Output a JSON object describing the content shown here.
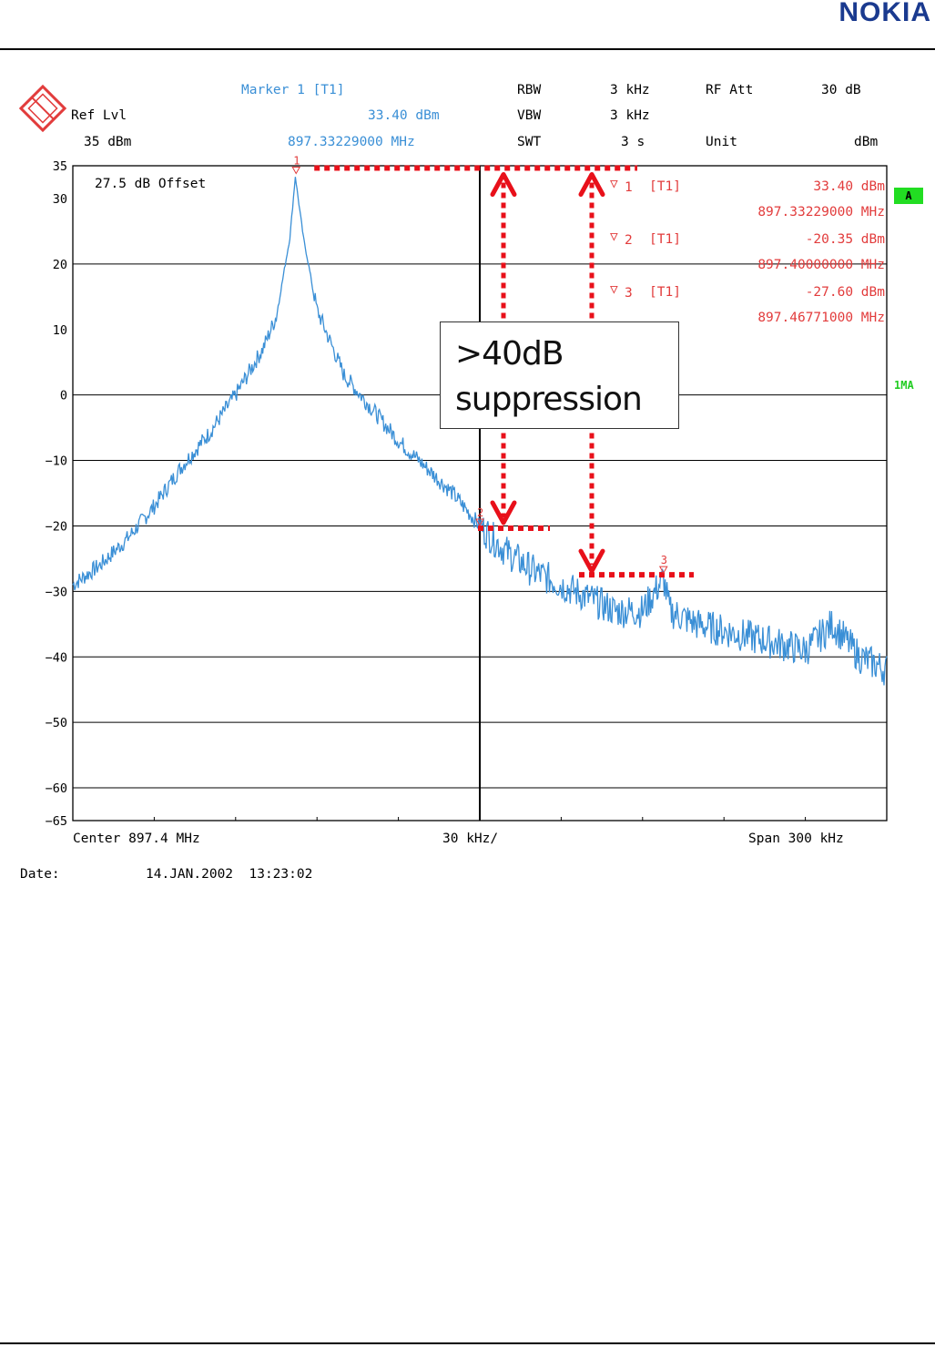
{
  "logo": {
    "text": "NOKIA",
    "color": "#1a3a8f"
  },
  "header": {
    "ref_lvl_label": "Ref Lvl",
    "ref_lvl_value": "35 dBm",
    "marker_title": "Marker 1 [T1]",
    "marker_level": "33.40 dBm",
    "marker_freq": "897.33229000 MHz",
    "rbw_label": "RBW",
    "rbw_value": "3 kHz",
    "vbw_label": "VBW",
    "vbw_value": "3 kHz",
    "swt_label": "SWT",
    "swt_value": "3 s",
    "rf_att_label": "RF Att",
    "rf_att_value": "30 dB",
    "unit_label": "Unit",
    "unit_value": "dBm"
  },
  "offset_label": "27.5 dB Offset",
  "markers_table": [
    {
      "id": "1",
      "tag": "[T1]",
      "level": "33.40 dBm",
      "freq": "897.33229000 MHz"
    },
    {
      "id": "2",
      "tag": "[T1]",
      "level": "-20.35 dBm",
      "freq": "897.40000000 MHz"
    },
    {
      "id": "3",
      "tag": "[T1]",
      "level": "-27.60 dBm",
      "freq": "897.46771000 MHz"
    }
  ],
  "side_badges": {
    "a": "A",
    "trace": "1MA"
  },
  "footer": {
    "center": "Center 897.4 MHz",
    "div": "30 kHz/",
    "span": "Span 300 kHz",
    "date_label": "Date:",
    "date_value": "14.JAN.2002  13:23:02"
  },
  "callout_text": ">40dB\nsuppression",
  "colors": {
    "trace": "#3a8fd6",
    "marker": "#e23c3c",
    "annotation": "#e8101a",
    "grid": "#000000",
    "badge": "#22dd22"
  },
  "chart_data": {
    "type": "line",
    "title": "",
    "xlabel": "",
    "ylabel": "",
    "x_unit": "MHz",
    "y_unit": "dBm",
    "xlim": [
      897.25,
      897.55
    ],
    "ylim": [
      -65,
      35
    ],
    "y_ticks": [
      35,
      30,
      20,
      10,
      0,
      -10,
      -20,
      -30,
      -40,
      -50,
      -60,
      -65
    ],
    "grid": true,
    "series": [
      {
        "x": [
          897.25,
          897.26,
          897.27,
          897.28,
          897.29,
          897.3,
          897.31,
          897.32,
          897.325,
          897.33,
          897.332,
          897.335,
          897.34,
          897.345,
          897.35,
          897.36,
          897.37,
          897.38,
          897.39,
          897.4,
          897.41,
          897.42,
          897.43,
          897.44,
          897.45,
          897.46,
          897.4677,
          897.47,
          897.48,
          897.49,
          897.5,
          897.51,
          897.52,
          897.53,
          897.54,
          897.55
        ],
        "y": [
          -29,
          -26,
          -22,
          -17,
          -11,
          -6,
          0,
          7,
          12,
          24,
          33.4,
          24,
          13,
          8,
          3,
          -2,
          -7,
          -11,
          -15,
          -20,
          -24,
          -27,
          -29,
          -31,
          -33,
          -33,
          -28,
          -33,
          -35,
          -36,
          -37,
          -38,
          -39,
          -35,
          -40,
          -42
        ]
      }
    ],
    "markers": [
      {
        "id": 1,
        "x": 897.33229,
        "y": 33.4
      },
      {
        "id": 2,
        "x": 897.4,
        "y": -20.35
      },
      {
        "id": 3,
        "x": 897.46771,
        "y": -27.6
      }
    ]
  }
}
